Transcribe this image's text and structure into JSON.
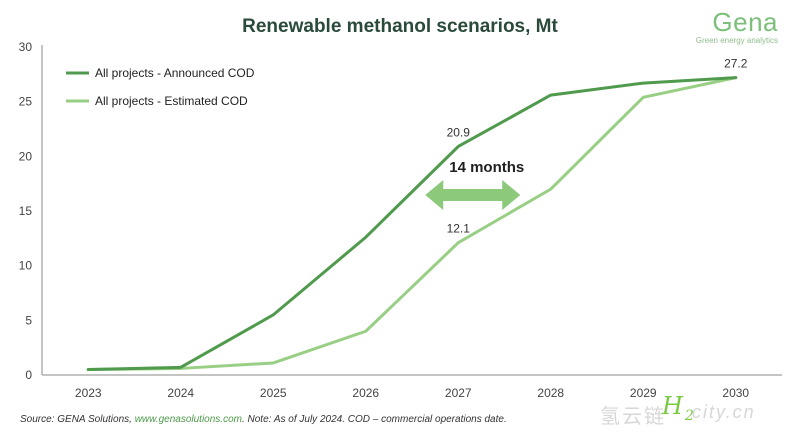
{
  "title": "Renewable methanol scenarios, Mt",
  "logo": {
    "name": "Gena",
    "tagline": "Green energy analytics"
  },
  "footer": {
    "prefix": "Source: GENA Solutions, ",
    "link": "www.genasolutions.com",
    "suffix": ". Note: As of July 2024. COD – commercial operations date."
  },
  "watermark": {
    "text": "氢云链",
    "h": "H",
    "sub": "2",
    "domain": "city.cn"
  },
  "chart_data": {
    "type": "line",
    "title": "Renewable methanol scenarios, Mt",
    "x": [
      "2023",
      "2024",
      "2025",
      "2026",
      "2027",
      "2028",
      "2029",
      "2030"
    ],
    "y_ticks": [
      "0",
      "5",
      "10",
      "15",
      "20",
      "25",
      "30"
    ],
    "ylim": [
      0,
      30
    ],
    "grid": false,
    "legend_position": "top-left",
    "series": [
      {
        "name": "All projects - Announced COD",
        "color": "#4f9a4c",
        "values": [
          0.5,
          0.7,
          5.5,
          12.6,
          20.9,
          25.6,
          26.7,
          27.2
        ]
      },
      {
        "name": "All projects - Estimated COD",
        "color": "#98cf84",
        "values": [
          0.5,
          0.6,
          1.1,
          4.0,
          12.1,
          17.0,
          25.4,
          27.2
        ]
      }
    ],
    "data_labels": [
      {
        "series": 0,
        "index": 4,
        "text": "20.9"
      },
      {
        "series": 1,
        "index": 4,
        "text": "12.1"
      },
      {
        "series": 0,
        "index": 7,
        "text": "27.2"
      }
    ],
    "annotation": {
      "text": "14 months",
      "color": "#8cc97a"
    }
  }
}
